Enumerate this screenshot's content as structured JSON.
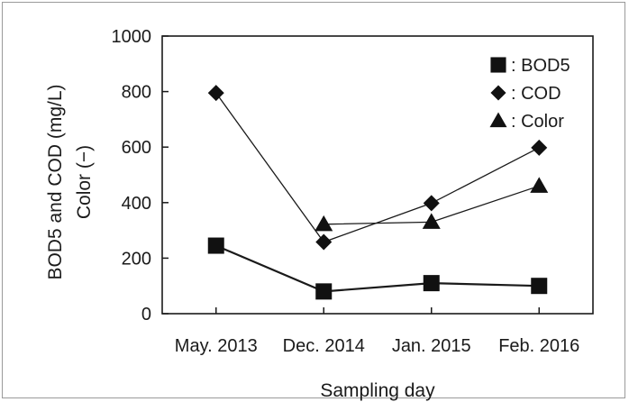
{
  "chart_data": {
    "type": "line",
    "categories": [
      "May. 2013",
      "Dec. 2014",
      "Jan. 2015",
      "Feb. 2016"
    ],
    "xlabel": "Sampling day",
    "ylabel_line1": "BOD5 and COD (mg/L)",
    "ylabel_line2": "Color (−)",
    "ylim": [
      0,
      1000
    ],
    "yticks": [
      0,
      200,
      400,
      600,
      800,
      1000
    ],
    "grid": false,
    "legend_position": "top-right",
    "series": [
      {
        "name": ": BOD5",
        "marker": "square",
        "values": [
          245,
          80,
          110,
          100
        ]
      },
      {
        "name": ": COD",
        "marker": "diamond",
        "values": [
          795,
          258,
          398,
          598
        ]
      },
      {
        "name": ": Color",
        "marker": "triangle",
        "values": [
          null,
          322,
          330,
          460
        ]
      }
    ]
  }
}
